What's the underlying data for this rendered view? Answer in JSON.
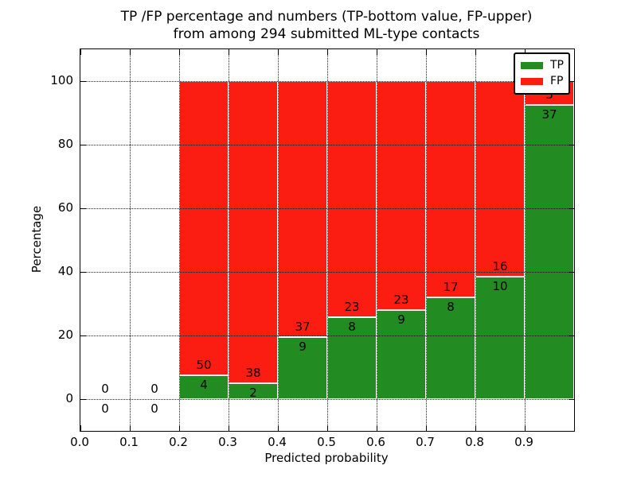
{
  "title": {
    "line1": "TP /FP percentage and numbers (TP-bottom value, FP-upper)",
    "line2": "from among 294 submitted ML-type contacts"
  },
  "axes": {
    "xlabel": "Predicted probability",
    "ylabel": "Percentage",
    "x_tick_labels": [
      "0.0",
      "0.1",
      "0.2",
      "0.3",
      "0.4",
      "0.5",
      "0.6",
      "0.7",
      "0.8",
      "0.9"
    ],
    "y_tick_labels": [
      "0",
      "20",
      "40",
      "60",
      "80",
      "100"
    ]
  },
  "legend": {
    "position": "upper right",
    "items": [
      {
        "label": "TP",
        "color": "#228b22"
      },
      {
        "label": "FP",
        "color": "#fb1d12"
      }
    ]
  },
  "chart_data": {
    "type": "bar",
    "stacked": true,
    "normalization": "each bin scaled to 100%; printed numbers are raw counts (TP bottom, FP upper)",
    "title": "TP /FP percentage and numbers (TP-bottom value, FP-upper)\nfrom among 294 submitted ML-type contacts",
    "xlabel": "Predicted probability",
    "ylabel": "Percentage",
    "bin_starts": [
      0.0,
      0.1,
      0.2,
      0.3,
      0.4,
      0.5,
      0.6,
      0.7,
      0.8,
      0.9
    ],
    "bin_width": 0.1,
    "series": [
      {
        "name": "TP",
        "color": "#228b22",
        "counts": [
          0,
          0,
          4,
          2,
          9,
          8,
          9,
          8,
          10,
          37
        ]
      },
      {
        "name": "FP",
        "color": "#fb1d12",
        "counts": [
          0,
          0,
          50,
          38,
          37,
          23,
          23,
          17,
          16,
          3
        ]
      }
    ],
    "total_contacts": 294,
    "xlim": [
      0.0,
      1.0
    ],
    "ylim": [
      -10,
      110
    ],
    "xticks": [
      0.0,
      0.1,
      0.2,
      0.3,
      0.4,
      0.5,
      0.6,
      0.7,
      0.8,
      0.9
    ],
    "yticks": [
      0,
      20,
      40,
      60,
      80,
      100
    ],
    "grid": true,
    "bar_edge_color": "#ffffff",
    "legend_position": "upper right"
  }
}
